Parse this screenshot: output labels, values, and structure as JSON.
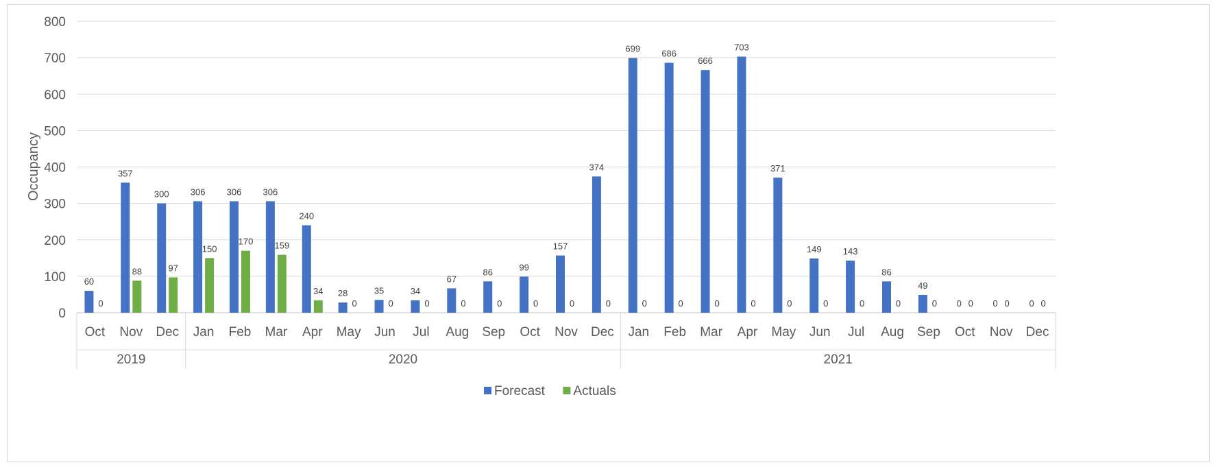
{
  "chart_data": {
    "type": "bar",
    "ylabel": "Occupancy",
    "ylim": [
      0,
      800
    ],
    "yticks": [
      0,
      100,
      200,
      300,
      400,
      500,
      600,
      700,
      800
    ],
    "grid": true,
    "legend_position": "bottom-center",
    "categories": [
      "Oct",
      "Nov",
      "Dec",
      "Jan",
      "Feb",
      "Mar",
      "Apr",
      "May",
      "Jun",
      "Jul",
      "Aug",
      "Sep",
      "Oct",
      "Nov",
      "Dec",
      "Jan",
      "Feb",
      "Mar",
      "Apr",
      "May",
      "Jun",
      "Jul",
      "Aug",
      "Sep",
      "Oct",
      "Nov",
      "Dec"
    ],
    "groups": [
      {
        "label": "2019",
        "count": 3
      },
      {
        "label": "2020",
        "count": 12
      },
      {
        "label": "2021",
        "count": 12
      }
    ],
    "series": [
      {
        "name": "Forecast",
        "color": "#4472c4",
        "values": [
          60,
          357,
          300,
          306,
          306,
          306,
          240,
          28,
          35,
          34,
          67,
          86,
          99,
          157,
          374,
          699,
          686,
          666,
          703,
          371,
          149,
          143,
          86,
          49,
          0,
          0,
          0
        ],
        "labels": [
          "60",
          "357",
          "300",
          "306",
          "306",
          "306",
          "240",
          "28",
          "35",
          "34",
          "67",
          "86",
          "99",
          "157",
          "374",
          "699",
          "686",
          "666",
          "703",
          "371",
          "149",
          "143",
          "86",
          "49",
          "0",
          "0",
          "0"
        ]
      },
      {
        "name": "Actuals",
        "color": "#70ad47",
        "values": [
          0,
          88,
          97,
          150,
          170,
          159,
          34,
          0,
          0,
          0,
          0,
          0,
          0,
          0,
          0,
          0,
          0,
          0,
          0,
          0,
          0,
          0,
          0,
          0,
          0,
          0,
          0
        ],
        "labels": [
          "0",
          "88",
          "97",
          "150",
          "170",
          "159",
          "34",
          "0",
          "0",
          "0",
          "0",
          "0",
          "0",
          "0",
          "0",
          "0",
          "0",
          "0",
          "0",
          "0",
          "0",
          "0",
          "0",
          "0",
          "0",
          "0",
          "0"
        ]
      }
    ]
  }
}
